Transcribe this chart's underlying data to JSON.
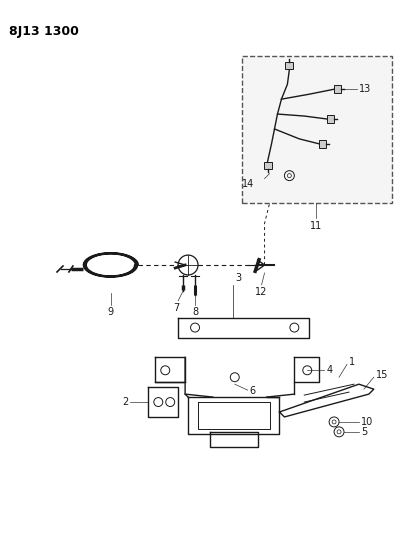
{
  "title": "8J13 1300",
  "background_color": "#ffffff",
  "line_color": "#1a1a1a",
  "label_color": "#000000",
  "fig_width": 4.03,
  "fig_height": 5.33,
  "dpi": 100
}
